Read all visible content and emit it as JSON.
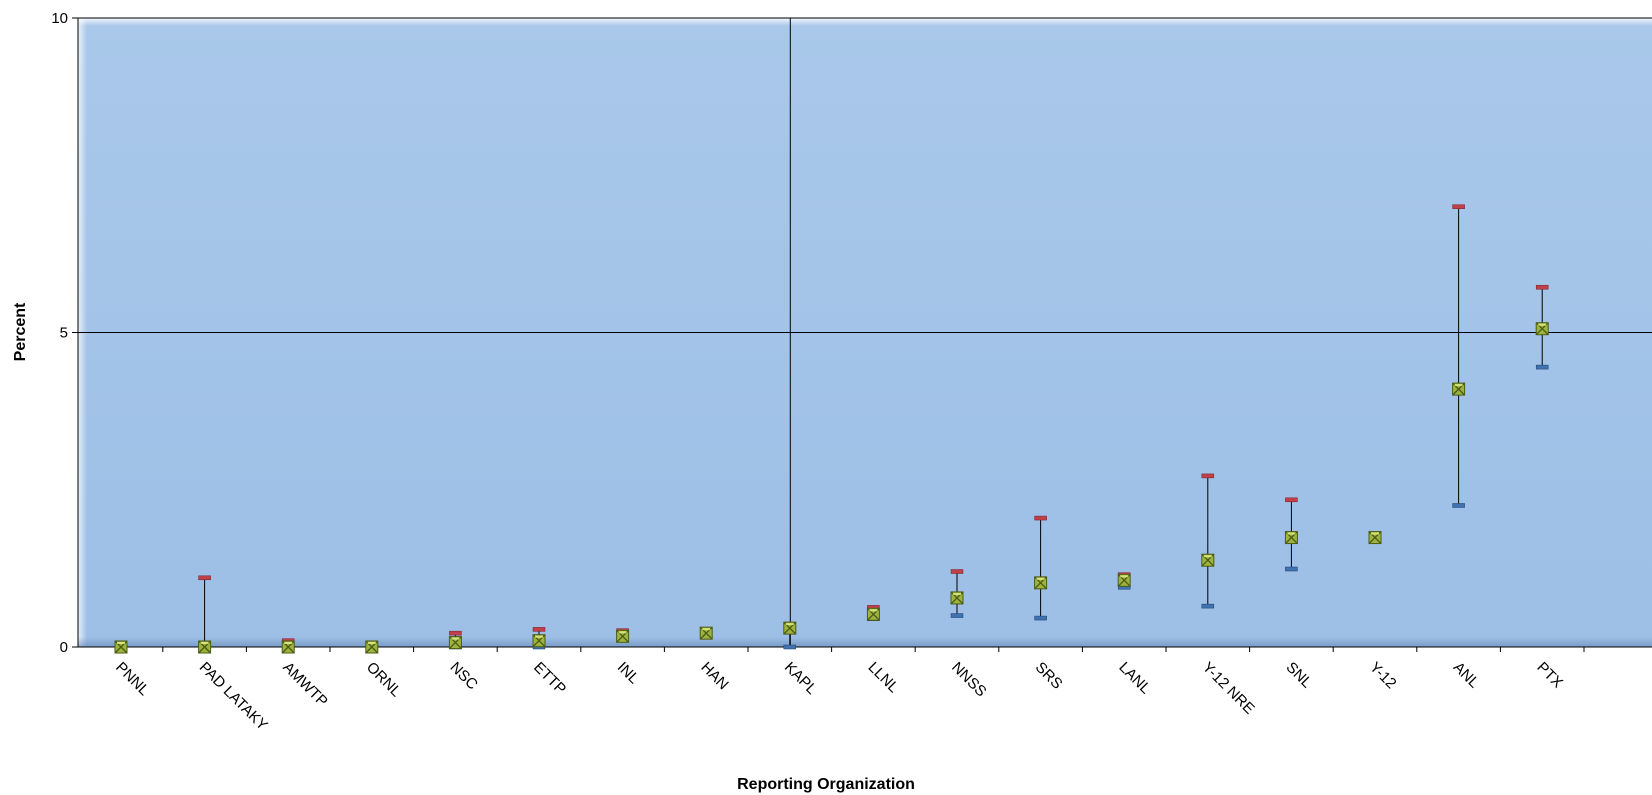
{
  "colors": {
    "plot_background_top": "#a9c8ea",
    "plot_background_bottom": "#9dbfe6",
    "upper_cap": "#c0404a",
    "lower_cap": "#3f72b0",
    "marker_fill": "#9cb33c",
    "marker_dark": "#4c5b16",
    "gridline": "#000000"
  },
  "chart_data": {
    "type": "scatter",
    "title": "",
    "xlabel": "Reporting Organization",
    "ylabel": "Percent",
    "ylim": [
      0,
      10
    ],
    "y_ticks": [
      "0",
      "5",
      "10"
    ],
    "grid": "horizontal at 5 and 10; vertical line at KAPL",
    "legend": "none",
    "categories": [
      "PNNL",
      "PAD LATAKY",
      "AMWTP",
      "ORNL",
      "NSC",
      "ETTP",
      "INL",
      "HAN",
      "KAPL",
      "LLNL",
      "NNSS",
      "SRS",
      "LANL",
      "Y-12 NRE",
      "SNL",
      "Y-12",
      "ANL",
      "PTX"
    ],
    "series": [
      {
        "values": [
          0,
          0,
          0,
          0,
          0.07,
          0.1,
          0.17,
          0.22,
          0.3,
          0.52,
          0.78,
          1.02,
          1.06,
          1.38,
          1.74,
          1.74,
          4.1,
          5.06
        ],
        "upper": [
          0,
          1.1,
          0.1,
          0,
          0.22,
          0.28,
          0.26,
          0.22,
          0.3,
          0.63,
          1.2,
          2.05,
          1.15,
          2.72,
          2.34,
          1.74,
          7.0,
          5.72
        ],
        "lower": [
          0,
          0,
          0,
          0,
          0,
          0,
          0.17,
          0.22,
          0,
          0.45,
          0.5,
          0.46,
          0.95,
          0.65,
          1.24,
          1.74,
          2.25,
          4.45
        ]
      }
    ],
    "vertical_gridline_category": "KAPL"
  }
}
